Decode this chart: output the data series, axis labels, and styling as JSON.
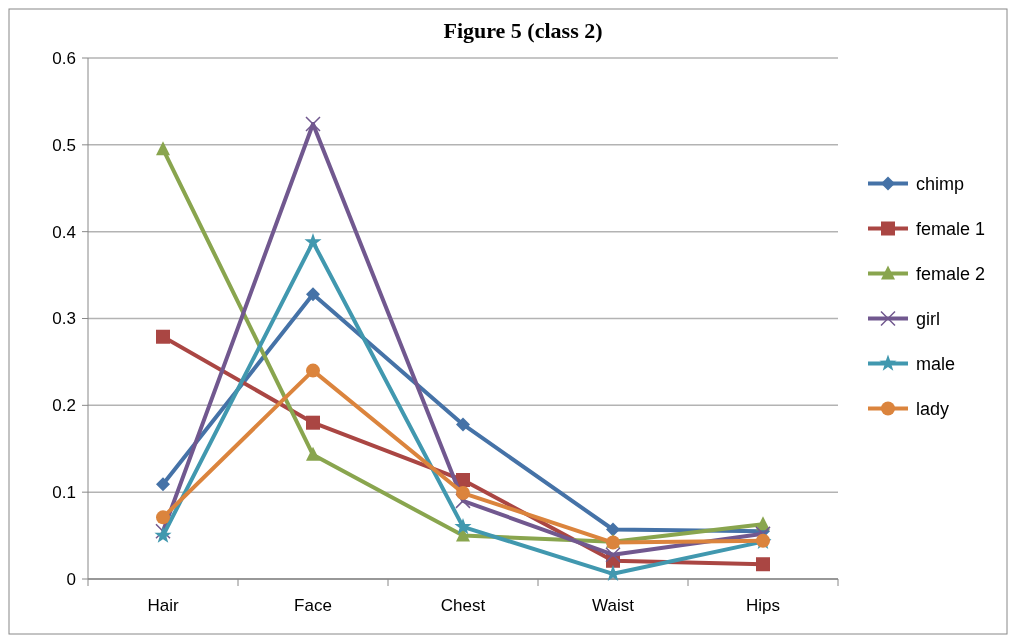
{
  "chart_data": {
    "type": "line",
    "title": "Figure 5 (class 2)",
    "categories": [
      "Hair",
      "Face",
      "Chest",
      "Waist",
      "Hips"
    ],
    "ylim": [
      0,
      0.6
    ],
    "yticks": [
      {
        "value": 0,
        "label": "0"
      },
      0.1,
      0.2,
      0.3,
      0.4,
      0.5,
      0.6
    ],
    "grid": "y",
    "legend": "right",
    "series": [
      {
        "name": "chimp",
        "color": "#4572a7",
        "marker": "diamond",
        "values": [
          0.109,
          0.328,
          0.178,
          0.057,
          0.055
        ]
      },
      {
        "name": "female 1",
        "color": "#aa4643",
        "marker": "square",
        "values": [
          0.279,
          0.18,
          0.114,
          0.021,
          0.017
        ]
      },
      {
        "name": "female 2",
        "color": "#89a54e",
        "marker": "triangle",
        "values": [
          0.495,
          0.143,
          0.05,
          0.043,
          0.063
        ]
      },
      {
        "name": "girl",
        "color": "#71588f",
        "marker": "cross",
        "values": [
          0.055,
          0.524,
          0.09,
          0.028,
          0.052
        ]
      },
      {
        "name": "male",
        "color": "#4198af",
        "marker": "star",
        "values": [
          0.05,
          0.388,
          0.06,
          0.006,
          0.043
        ]
      },
      {
        "name": "lady",
        "color": "#db843d",
        "marker": "circle",
        "values": [
          0.071,
          0.24,
          0.099,
          0.042,
          0.044
        ]
      }
    ]
  }
}
